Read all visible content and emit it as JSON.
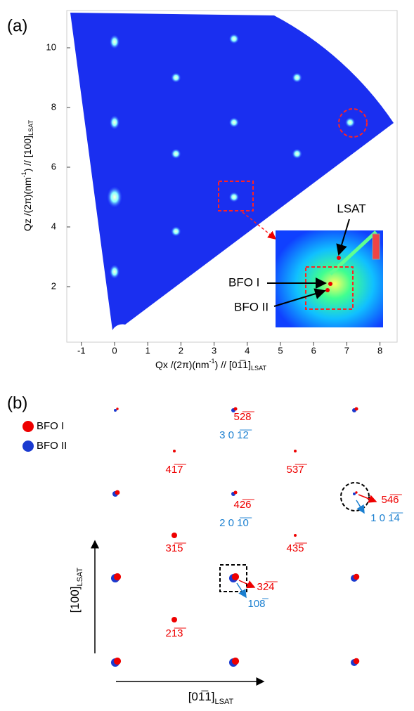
{
  "panel_a": {
    "label": "(a)",
    "x_ticks": [
      "-1",
      "0",
      "1",
      "2",
      "3",
      "4",
      "5",
      "6",
      "7",
      "8"
    ],
    "y_ticks": [
      "10",
      "8",
      "6",
      "4",
      "2"
    ],
    "x_label": {
      "main": "Qx /(2π)(nm",
      "sup": "-1",
      "rest": ") // [01̅1]",
      "sub": "LSAT"
    },
    "y_label": {
      "main": "Qz /(2π)(nm",
      "sup": "-1",
      "rest": ") // [100]",
      "sub": "LSAT"
    },
    "inset_labels": [
      "LSAT",
      "BFO I",
      "BFO II"
    ]
  },
  "panel_b": {
    "label": "(b)",
    "legend": [
      "BFO I",
      "BFO II"
    ],
    "red_labels": [
      "52̅8̅",
      "41̅7̅",
      "53̅7̅",
      "42̅6̅",
      "54̅6̅",
      "31̅5̅",
      "43̅5̅",
      "32̅4̅",
      "21̅3̅"
    ],
    "blue_labels": [
      "3 0 1̅2̅",
      "2 0 1̅0̅",
      "1 0 1̅4̅",
      "108̅"
    ],
    "axis_y": {
      "main": "[100]",
      "sub": "LSAT"
    },
    "axis_x": {
      "main": "[01̅1]",
      "sub": "LSAT"
    }
  }
}
